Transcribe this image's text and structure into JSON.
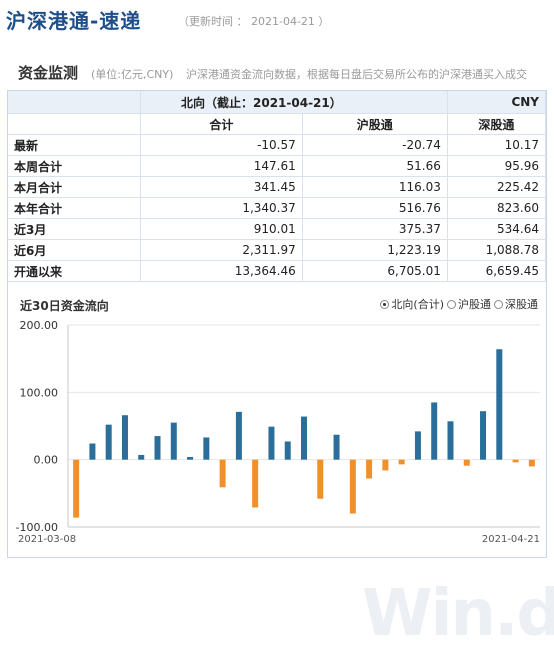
{
  "header": {
    "title": "沪深港通-速递",
    "updated": "（更新时间 ： 2021-04-21 ）"
  },
  "section": {
    "title": "资金监测",
    "unit": "(单位:亿元,CNY)",
    "desc": "沪深港通资金流向数据，根据每日盘后交易所公布的沪深港通买入成交"
  },
  "table": {
    "title": "北向（截止：2021-04-21）",
    "currency": "CNY",
    "columns": [
      "合计",
      "沪股通",
      "深股通"
    ],
    "rows": [
      {
        "label": "最新",
        "values": [
          "-10.57",
          "-20.74",
          "10.17"
        ]
      },
      {
        "label": "本周合计",
        "values": [
          "147.61",
          "51.66",
          "95.96"
        ]
      },
      {
        "label": "本月合计",
        "values": [
          "341.45",
          "116.03",
          "225.42"
        ]
      },
      {
        "label": "本年合计",
        "values": [
          "1,340.37",
          "516.76",
          "823.60"
        ]
      },
      {
        "label": "近3月",
        "values": [
          "910.01",
          "375.37",
          "534.64"
        ]
      },
      {
        "label": "近6月",
        "values": [
          "2,311.97",
          "1,223.19",
          "1,088.78"
        ]
      },
      {
        "label": "开通以来",
        "values": [
          "13,364.46",
          "6,705.01",
          "6,659.45"
        ]
      }
    ]
  },
  "chart_header": {
    "title": "近30日资金流向",
    "options": [
      {
        "label": "北向(合计)",
        "selected": true
      },
      {
        "label": "沪股通",
        "selected": false
      },
      {
        "label": "深股通",
        "selected": false
      }
    ]
  },
  "watermark": "Win.d",
  "chart_data": {
    "type": "bar",
    "title": "近30日资金流向",
    "ylim": [
      -100,
      200
    ],
    "yticks": [
      "200.00",
      "100.00",
      "0.00",
      "-100.00"
    ],
    "x_start_label": "2021-03-08",
    "x_end_label": "2021-04-21",
    "colors": {
      "positive": "#2a6e99",
      "negative": "#f0902a"
    },
    "values": [
      -86,
      24,
      52,
      66,
      7,
      35,
      55,
      4,
      33,
      -41,
      71,
      -71,
      49,
      27,
      64,
      -58,
      37,
      -80,
      -28,
      -16,
      -7,
      42,
      85,
      57,
      -9,
      72,
      164,
      -4,
      -10
    ]
  }
}
